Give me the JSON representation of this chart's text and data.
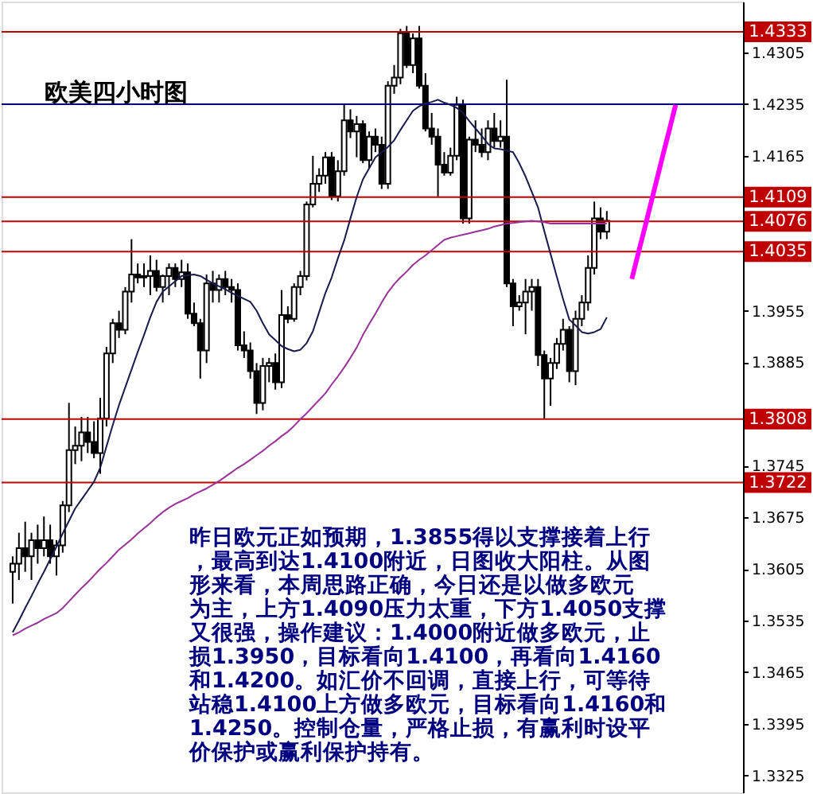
{
  "chart_data": {
    "type": "candlestick",
    "title": "欧美四小时图",
    "categories": [
      null,
      null,
      null,
      null,
      null,
      null,
      null,
      null,
      null,
      null,
      null,
      null,
      null,
      null,
      null,
      null,
      null,
      null,
      null,
      null,
      null,
      null,
      null,
      null,
      null,
      null,
      null,
      null,
      null,
      null,
      null,
      null,
      null,
      null,
      null,
      null,
      null,
      null,
      null,
      null,
      null,
      null,
      null,
      null,
      null,
      null,
      null,
      null,
      null,
      null,
      null,
      null,
      null,
      null,
      null,
      null,
      null,
      null,
      null,
      null,
      null,
      null,
      null,
      null,
      null,
      null,
      null,
      null,
      null,
      null,
      null,
      null,
      null,
      null,
      null,
      null,
      null,
      null,
      null,
      null,
      null,
      null,
      null,
      null,
      null,
      null,
      null,
      null,
      null,
      null,
      null,
      null,
      null,
      null,
      null,
      null,
      null,
      null,
      null,
      null,
      null,
      null,
      null,
      null,
      null,
      null,
      null,
      null,
      null,
      null,
      null,
      null,
      null,
      null,
      null,
      null
    ],
    "ohlc": [
      [
        1.3601,
        1.3622,
        1.3558,
        1.3612
      ],
      [
        1.3612,
        1.3654,
        1.359,
        1.3633
      ],
      [
        1.3633,
        1.3669,
        1.3601,
        1.3622
      ],
      [
        1.3622,
        1.3654,
        1.359,
        1.3644
      ],
      [
        1.3644,
        1.3665,
        1.3612,
        1.3633
      ],
      [
        1.3633,
        1.3676,
        1.3622,
        1.3644
      ],
      [
        1.3644,
        1.3665,
        1.3612,
        1.3622
      ],
      [
        1.3622,
        1.3644,
        1.3596,
        1.3637
      ],
      [
        1.3637,
        1.3697,
        1.3627,
        1.3691
      ],
      [
        1.3691,
        1.383,
        1.3682,
        1.3766
      ],
      [
        1.3766,
        1.3798,
        1.3747,
        1.3772
      ],
      [
        1.3772,
        1.3811,
        1.3751,
        1.379
      ],
      [
        1.379,
        1.3811,
        1.3762,
        1.3777
      ],
      [
        1.3777,
        1.3805,
        1.3755,
        1.3762
      ],
      [
        1.3762,
        1.3837,
        1.3734,
        1.3809
      ],
      [
        1.3809,
        1.3906,
        1.3798,
        1.3897
      ],
      [
        1.3897,
        1.3944,
        1.3884,
        1.3938
      ],
      [
        1.3938,
        1.3955,
        1.3918,
        1.3929
      ],
      [
        1.3929,
        1.3987,
        1.3923,
        1.3981
      ],
      [
        1.3981,
        1.4052,
        1.3966,
        1.4004
      ],
      [
        1.4004,
        1.4019,
        1.3992,
        1.4
      ],
      [
        1.4,
        1.4019,
        1.3987,
        1.4002
      ],
      [
        1.4002,
        1.403,
        1.3976,
        1.4009
      ],
      [
        1.4009,
        1.4024,
        1.3981,
        1.3987
      ],
      [
        1.3987,
        1.4004,
        1.3966,
        1.4002
      ],
      [
        1.4002,
        1.4019,
        1.3976,
        1.4013
      ],
      [
        1.4013,
        1.4019,
        1.3987,
        1.3998
      ],
      [
        1.3998,
        1.4024,
        1.3987,
        1.4007
      ],
      [
        1.4007,
        1.4019,
        1.3944,
        1.3951
      ],
      [
        1.3951,
        1.3966,
        1.3934,
        1.3938
      ],
      [
        1.3938,
        1.3944,
        1.3863,
        1.3901
      ],
      [
        1.3901,
        1.4004,
        1.3884,
        1.3992
      ],
      [
        1.3992,
        1.4009,
        1.3966,
        1.3983
      ],
      [
        1.3983,
        1.4004,
        1.3966,
        1.3998
      ],
      [
        1.3998,
        1.4009,
        1.3976,
        1.3987
      ],
      [
        1.3987,
        1.3998,
        1.3966,
        1.3983
      ],
      [
        1.3983,
        1.3992,
        1.3901,
        1.3908
      ],
      [
        1.3908,
        1.3927,
        1.3891,
        1.3901
      ],
      [
        1.3901,
        1.3912,
        1.3863,
        1.3873
      ],
      [
        1.3873,
        1.3884,
        1.3815,
        1.383
      ],
      [
        1.383,
        1.3891,
        1.382,
        1.388
      ],
      [
        1.388,
        1.3891,
        1.3858,
        1.3884
      ],
      [
        1.3884,
        1.3897,
        1.3848,
        1.3858
      ],
      [
        1.3858,
        1.3983,
        1.385,
        1.3949
      ],
      [
        1.3949,
        1.3961,
        1.3938,
        1.3944
      ],
      [
        1.3944,
        1.3992,
        1.394,
        1.3987
      ],
      [
        1.3987,
        1.4009,
        1.3976,
        1.4002
      ],
      [
        1.4002,
        1.4103,
        1.3996,
        1.4099
      ],
      [
        1.4099,
        1.4165,
        1.4095,
        1.4127
      ],
      [
        1.4127,
        1.4148,
        1.4116,
        1.4138
      ],
      [
        1.4138,
        1.417,
        1.4127,
        1.4163
      ],
      [
        1.4163,
        1.417,
        1.4105,
        1.411
      ],
      [
        1.411,
        1.4159,
        1.4103,
        1.4144
      ],
      [
        1.4144,
        1.4234,
        1.4138,
        1.4213
      ],
      [
        1.4213,
        1.4228,
        1.4189,
        1.4198
      ],
      [
        1.4198,
        1.4219,
        1.4163,
        1.4208
      ],
      [
        1.4208,
        1.4213,
        1.4155,
        1.4159
      ],
      [
        1.4159,
        1.4198,
        1.4148,
        1.4191
      ],
      [
        1.4191,
        1.4202,
        1.417,
        1.418
      ],
      [
        1.418,
        1.4191,
        1.412,
        1.4127
      ],
      [
        1.4127,
        1.4266,
        1.412,
        1.426
      ],
      [
        1.426,
        1.4288,
        1.4249,
        1.4271
      ],
      [
        1.4271,
        1.4337,
        1.4262,
        1.4331
      ],
      [
        1.4331,
        1.4341,
        1.4284,
        1.4288
      ],
      [
        1.4288,
        1.4331,
        1.4277,
        1.4324
      ],
      [
        1.4324,
        1.4341,
        1.4256,
        1.426
      ],
      [
        1.426,
        1.4277,
        1.4198,
        1.4202
      ],
      [
        1.4202,
        1.4223,
        1.418,
        1.4191
      ],
      [
        1.4191,
        1.4202,
        1.411,
        1.4153
      ],
      [
        1.4153,
        1.417,
        1.4138,
        1.4142
      ],
      [
        1.4142,
        1.4176,
        1.4138,
        1.4165
      ],
      [
        1.4165,
        1.4245,
        1.4159,
        1.4234
      ],
      [
        1.4234,
        1.4241,
        1.4073,
        1.408
      ],
      [
        1.408,
        1.4191,
        1.4073,
        1.4187
      ],
      [
        1.4187,
        1.4213,
        1.417,
        1.418
      ],
      [
        1.418,
        1.4202,
        1.4163,
        1.417
      ],
      [
        1.417,
        1.4213,
        1.4159,
        1.4202
      ],
      [
        1.4202,
        1.4223,
        1.4176,
        1.4185
      ],
      [
        1.4185,
        1.4213,
        1.4176,
        1.4191
      ],
      [
        1.4191,
        1.4268,
        1.3987,
        1.3992
      ],
      [
        1.3992,
        1.3998,
        1.3934,
        1.3961
      ],
      [
        1.3961,
        1.3976,
        1.3955,
        1.3966
      ],
      [
        1.3966,
        1.3998,
        1.3923,
        1.3981
      ],
      [
        1.3981,
        1.3998,
        1.3955,
        1.3987
      ],
      [
        1.3987,
        1.3998,
        1.388,
        1.3895
      ],
      [
        1.3895,
        1.3901,
        1.3809,
        1.3863
      ],
      [
        1.3863,
        1.3891,
        1.3826,
        1.3884
      ],
      [
        1.3884,
        1.3918,
        1.3876,
        1.391
      ],
      [
        1.391,
        1.3944,
        1.3901,
        1.3929
      ],
      [
        1.3929,
        1.3934,
        1.3858,
        1.3873
      ],
      [
        1.3873,
        1.3955,
        1.3854,
        1.3944
      ],
      [
        1.3944,
        1.3976,
        1.3934,
        1.3966
      ],
      [
        1.3966,
        1.403,
        1.3955,
        1.4013
      ],
      [
        1.4013,
        1.4103,
        1.4004,
        1.408
      ],
      [
        1.408,
        1.4095,
        1.4052,
        1.4062
      ],
      [
        1.4062,
        1.409,
        1.4052,
        1.4077
      ],
      null,
      null,
      null,
      null,
      null,
      null,
      null,
      null,
      null,
      null,
      null,
      null,
      null,
      null,
      null,
      null,
      null,
      null,
      null,
      null
    ],
    "series": [
      {
        "type": "line",
        "color": "#1a1a4d",
        "values": [
          1.3519,
          1.3535,
          1.3552,
          1.3568,
          1.3585,
          1.3601,
          1.3618,
          1.3635,
          1.3653,
          1.367,
          1.3687,
          1.3699,
          1.3711,
          1.3723,
          1.3742,
          1.3771,
          1.38,
          1.3827,
          1.3851,
          1.3875,
          1.3899,
          1.3922,
          1.3946,
          1.3967,
          1.3981,
          1.3988,
          1.3995,
          1.4002,
          1.4003,
          1.4004,
          1.4002,
          1.3997,
          1.3992,
          1.3988,
          1.3984,
          1.3979,
          1.3975,
          1.3971,
          1.3967,
          1.3955,
          1.3938,
          1.3923,
          1.3915,
          1.3907,
          1.3903,
          1.39,
          1.3902,
          1.3911,
          1.3927,
          1.3953,
          1.3979,
          1.4,
          1.4026,
          1.405,
          1.408,
          1.4109,
          1.4133,
          1.4148,
          1.4163,
          1.417,
          1.4177,
          1.4186,
          1.42,
          1.4213,
          1.4226,
          1.4232,
          1.4236,
          1.4238,
          1.4241,
          1.4237,
          1.4234,
          1.423,
          1.4223,
          1.4212,
          1.4202,
          1.4192,
          1.4181,
          1.4175,
          1.4174,
          1.4172,
          1.417,
          1.4155,
          1.4137,
          1.4116,
          1.4095,
          1.4063,
          1.4032,
          1.4001,
          1.3971,
          1.3943,
          1.3935,
          1.3926,
          1.3924,
          1.3926,
          1.393,
          1.3946,
          null,
          null,
          null,
          null,
          null,
          null,
          null,
          null,
          null,
          null,
          null,
          null,
          null,
          null,
          null,
          null,
          null,
          null,
          null,
          null
        ]
      },
      {
        "type": "line",
        "color": "#993399",
        "values": [
          1.3515,
          1.3519,
          1.3524,
          1.3528,
          1.3532,
          1.3537,
          1.3541,
          1.3545,
          1.3552,
          1.3561,
          1.357,
          1.3579,
          1.3587,
          1.3596,
          1.3605,
          1.3613,
          1.3622,
          1.3631,
          1.3638,
          1.3645,
          1.3653,
          1.366,
          1.3667,
          1.3675,
          1.3682,
          1.3688,
          1.3693,
          1.3697,
          1.3701,
          1.3706,
          1.371,
          1.3714,
          1.3719,
          1.3724,
          1.373,
          1.3736,
          1.3742,
          1.3747,
          1.3753,
          1.3759,
          1.3765,
          1.3772,
          1.3778,
          1.3785,
          1.3791,
          1.3799,
          1.3808,
          1.3816,
          1.3825,
          1.3834,
          1.3843,
          1.3855,
          1.3866,
          1.3878,
          1.3891,
          1.3905,
          1.3922,
          1.3937,
          1.3951,
          1.3966,
          1.398,
          1.3991,
          1.4,
          1.4008,
          1.4017,
          1.4024,
          1.403,
          1.4037,
          1.4044,
          1.4051,
          1.4054,
          1.4056,
          1.4058,
          1.406,
          1.4062,
          1.4064,
          1.4066,
          1.4069,
          1.4071,
          1.4073,
          1.4074,
          1.4075,
          1.4076,
          1.4077,
          1.4076,
          1.4075,
          1.4073,
          1.4073,
          1.4073,
          1.4073,
          1.4073,
          1.4073,
          1.4073,
          1.4073,
          1.4073,
          1.4073,
          null,
          null,
          null,
          null,
          null,
          null,
          null,
          null,
          null,
          null,
          null,
          null,
          null,
          null,
          null,
          null,
          null,
          null,
          null,
          null
        ]
      },
      {
        "type": "line",
        "color": "#ff00ff",
        "values": [
          null,
          null,
          null,
          null,
          null,
          null,
          null,
          null,
          null,
          null,
          null,
          null,
          null,
          null,
          null,
          null,
          null,
          null,
          null,
          null,
          null,
          null,
          null,
          null,
          null,
          null,
          null,
          null,
          null,
          null,
          null,
          null,
          null,
          null,
          null,
          null,
          null,
          null,
          null,
          null,
          null,
          null,
          null,
          null,
          null,
          null,
          null,
          null,
          null,
          null,
          null,
          null,
          null,
          null,
          null,
          null,
          null,
          null,
          null,
          null,
          null,
          null,
          null,
          null,
          null,
          null,
          null,
          null,
          null,
          null,
          null,
          null,
          null,
          null,
          null,
          null,
          null,
          null,
          null,
          null,
          null,
          null,
          null,
          null,
          null,
          null,
          null,
          null,
          null,
          null,
          null,
          null,
          null,
          null,
          null,
          null,
          null,
          null,
          null,
          1.3998,
          1.4032,
          1.4065,
          1.4099,
          1.4133,
          1.4167,
          1.42,
          1.4234,
          null,
          null,
          null,
          null,
          null,
          null,
          null,
          null,
          null
        ]
      }
    ],
    "ref_lines": [
      {
        "axis": "y",
        "value": 1.4333,
        "label": "1.4333",
        "color": "#c00000"
      },
      {
        "axis": "y",
        "value": 1.4235,
        "label": null,
        "color": "#000080"
      },
      {
        "axis": "y",
        "value": 1.4109,
        "label": "1.4109",
        "color": "#c00000"
      },
      {
        "axis": "y",
        "value": 1.4076,
        "label": "1.4076",
        "color": "#c00000"
      },
      {
        "axis": "y",
        "value": 1.4035,
        "label": "1.4035",
        "color": "#c00000"
      },
      {
        "axis": "y",
        "value": 1.3808,
        "label": "1.3808",
        "color": "#c00000"
      },
      {
        "axis": "y",
        "value": 1.3722,
        "label": "1.3722",
        "color": "#c00000"
      }
    ],
    "annotations": [
      "昨日欧元正如预期，1.3855得以支撑接着上行",
      "，最高到达1.4100附近，日图收大阳柱。从图",
      "形来看，本周思路正确，今日还是以做多欧元",
      "为主，上方1.4090压力太重，下方1.4050支撑",
      "又很强，操作建议：1.4000附近做多欧元，止",
      "损1.3950，目标看向1.4100，再看向1.4160",
      "和1.4200。如汇价不回调，直接上行，可等待",
      "站稳1.4100上方做多欧元，目标看向1.4160和",
      "1.4250。控制仓量，严格止损，有赢利时设平",
      "价保护或赢利保护持有。"
    ],
    "ylim": [
      1.3302,
      1.4374
    ],
    "yticks": [
      1.4305,
      1.4235,
      1.4165,
      1.3955,
      1.3885,
      1.3745,
      1.3675,
      1.3605,
      1.3535,
      1.3465,
      1.3395,
      1.3325
    ],
    "tick_labels": "y",
    "grid": false
  }
}
